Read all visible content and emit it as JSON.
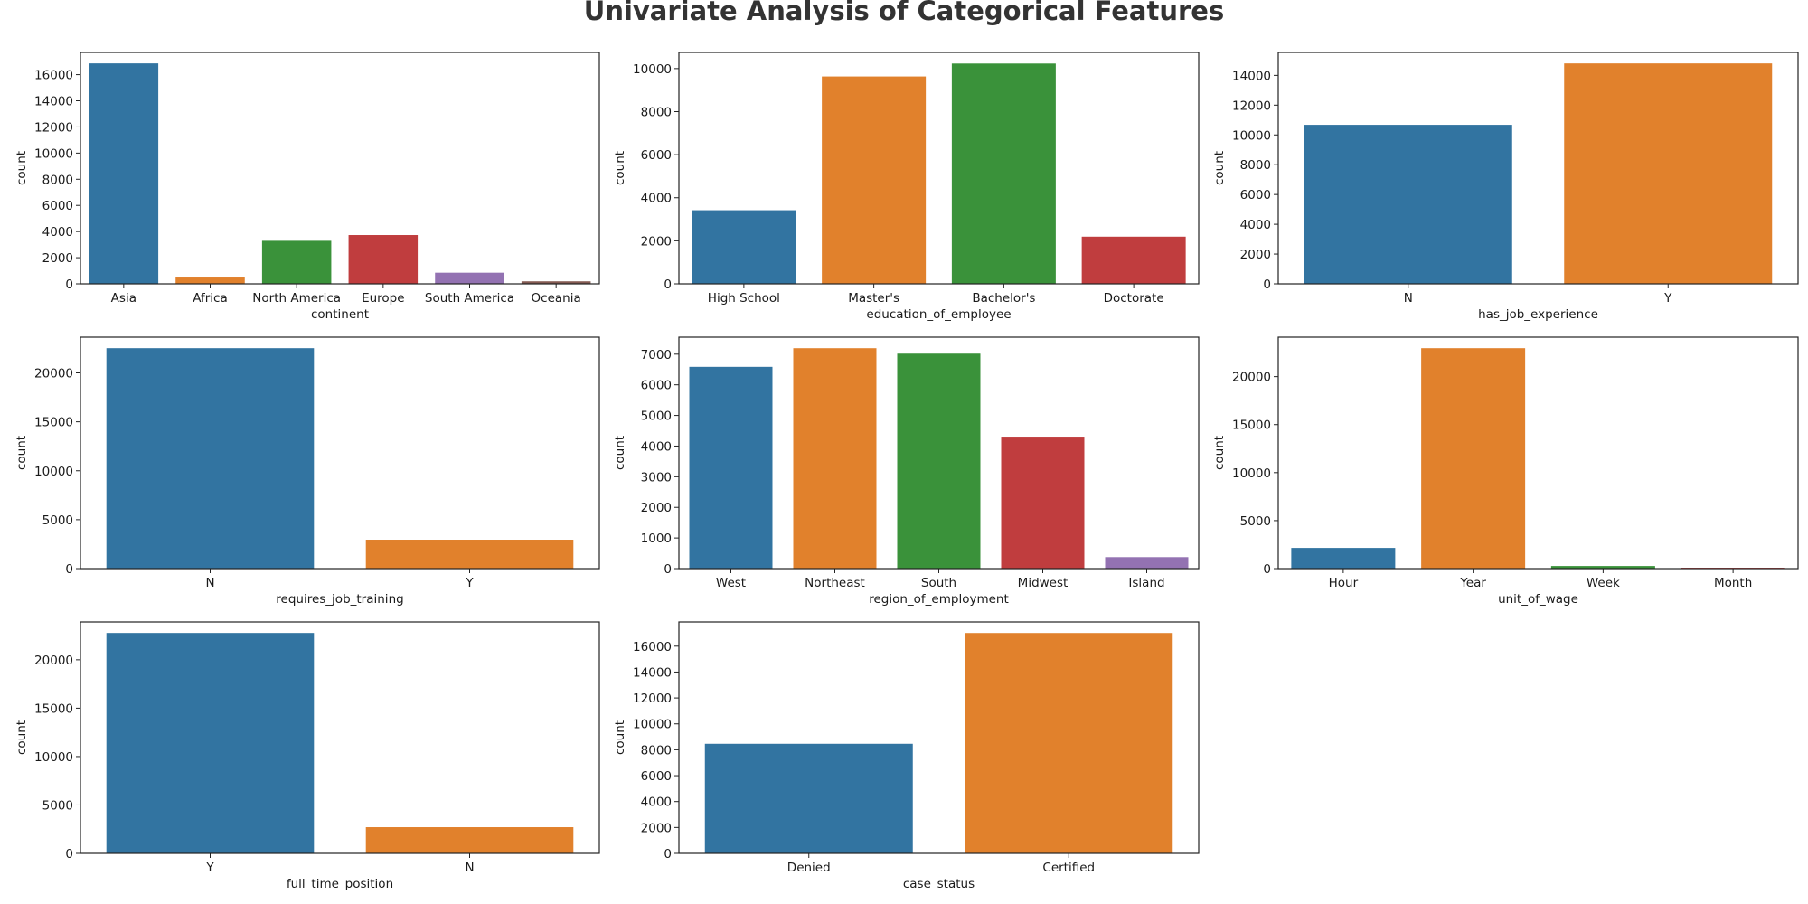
{
  "figure": {
    "title": "Univariate Analysis of Categorical Features"
  },
  "colors": [
    "#3274a1",
    "#e1812c",
    "#3a923a",
    "#c03d3e",
    "#9372b2",
    "#845b53"
  ],
  "chart_data": [
    {
      "type": "bar",
      "xlabel": "continent",
      "ylabel": "count",
      "categories": [
        "Asia",
        "Africa",
        "North America",
        "Europe",
        "South America",
        "Oceania"
      ],
      "values": [
        16861,
        551,
        3292,
        3732,
        852,
        192
      ],
      "ylim": [
        0,
        17700
      ],
      "yticks": [
        0,
        2000,
        4000,
        6000,
        8000,
        10000,
        12000,
        14000,
        16000
      ]
    },
    {
      "type": "bar",
      "xlabel": "education_of_employee",
      "ylabel": "count",
      "categories": [
        "High School",
        "Master's",
        "Bachelor's",
        "Doctorate"
      ],
      "values": [
        3420,
        9634,
        10234,
        2192
      ],
      "ylim": [
        0,
        10750
      ],
      "yticks": [
        0,
        2000,
        4000,
        6000,
        8000,
        10000
      ]
    },
    {
      "type": "bar",
      "xlabel": "has_job_experience",
      "ylabel": "count",
      "categories": [
        "N",
        "Y"
      ],
      "values": [
        10678,
        14802
      ],
      "ylim": [
        0,
        15540
      ],
      "yticks": [
        0,
        2000,
        4000,
        6000,
        8000,
        10000,
        12000,
        14000
      ]
    },
    {
      "type": "bar",
      "xlabel": "requires_job_training",
      "ylabel": "count",
      "categories": [
        "N",
        "Y"
      ],
      "values": [
        22525,
        2955
      ],
      "ylim": [
        0,
        23650
      ],
      "yticks": [
        0,
        5000,
        10000,
        15000,
        20000
      ]
    },
    {
      "type": "bar",
      "xlabel": "region_of_employment",
      "ylabel": "count",
      "categories": [
        "West",
        "Northeast",
        "South",
        "Midwest",
        "Island"
      ],
      "values": [
        6586,
        7195,
        7017,
        4307,
        375
      ],
      "ylim": [
        0,
        7555
      ],
      "yticks": [
        0,
        1000,
        2000,
        3000,
        4000,
        5000,
        6000,
        7000
      ]
    },
    {
      "type": "bar",
      "xlabel": "unit_of_wage",
      "ylabel": "count",
      "categories": [
        "Hour",
        "Year",
        "Week",
        "Month"
      ],
      "values": [
        2157,
        22962,
        272,
        89
      ],
      "ylim": [
        0,
        24110
      ],
      "yticks": [
        0,
        5000,
        10000,
        15000,
        20000
      ]
    },
    {
      "type": "bar",
      "xlabel": "full_time_position",
      "ylabel": "count",
      "categories": [
        "Y",
        "N"
      ],
      "values": [
        22773,
        2707
      ],
      "ylim": [
        0,
        23910
      ],
      "yticks": [
        0,
        5000,
        10000,
        15000,
        20000
      ]
    },
    {
      "type": "bar",
      "xlabel": "case_status",
      "ylabel": "count",
      "categories": [
        "Denied",
        "Certified"
      ],
      "values": [
        8462,
        17018
      ],
      "ylim": [
        0,
        17870
      ],
      "yticks": [
        0,
        2000,
        4000,
        6000,
        8000,
        10000,
        12000,
        14000,
        16000
      ]
    }
  ]
}
